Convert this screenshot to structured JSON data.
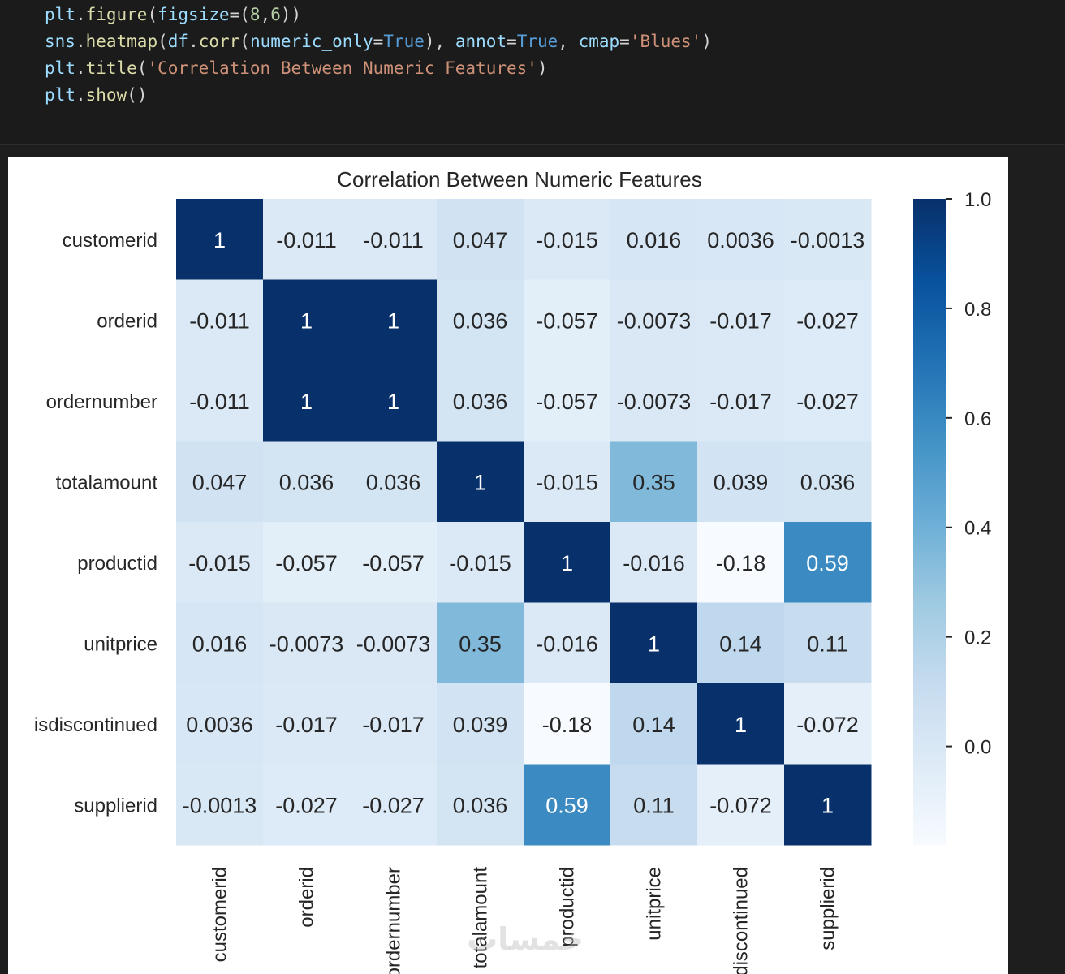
{
  "code_cell": {
    "lines": [
      [
        [
          "var",
          "plt"
        ],
        [
          "p",
          "."
        ],
        [
          "fn",
          "figure"
        ],
        [
          "p",
          "("
        ],
        [
          "var",
          "figsize"
        ],
        [
          "p",
          "=("
        ],
        [
          "num",
          "8"
        ],
        [
          "p",
          ","
        ],
        [
          "num",
          "6"
        ],
        [
          "p",
          "))"
        ]
      ],
      [
        [
          "var",
          "sns"
        ],
        [
          "p",
          "."
        ],
        [
          "fn",
          "heatmap"
        ],
        [
          "p",
          "("
        ],
        [
          "var",
          "df"
        ],
        [
          "p",
          "."
        ],
        [
          "fn",
          "corr"
        ],
        [
          "p",
          "("
        ],
        [
          "var",
          "numeric_only"
        ],
        [
          "p",
          "="
        ],
        [
          "kw",
          "True"
        ],
        [
          "p",
          "), "
        ],
        [
          "var",
          "annot"
        ],
        [
          "p",
          "="
        ],
        [
          "kw",
          "True"
        ],
        [
          "p",
          ", "
        ],
        [
          "var",
          "cmap"
        ],
        [
          "p",
          "="
        ],
        [
          "str",
          "'Blues'"
        ],
        [
          "p",
          ")"
        ]
      ],
      [
        [
          "var",
          "plt"
        ],
        [
          "p",
          "."
        ],
        [
          "fn",
          "title"
        ],
        [
          "p",
          "("
        ],
        [
          "str",
          "'Correlation Between Numeric Features'"
        ],
        [
          "p",
          ")"
        ]
      ],
      [
        [
          "var",
          "plt"
        ],
        [
          "p",
          "."
        ],
        [
          "fn",
          "show"
        ],
        [
          "p",
          "()"
        ]
      ]
    ]
  },
  "chart_data": {
    "type": "heatmap",
    "title": "Correlation Between Numeric Features",
    "row_labels": [
      "customerid",
      "orderid",
      "ordernumber",
      "totalamount",
      "productid",
      "unitprice",
      "isdiscontinued",
      "supplierid"
    ],
    "col_labels": [
      "customerid",
      "orderid",
      "ordernumber",
      "totalamount",
      "productid",
      "unitprice",
      "isdiscontinued",
      "supplierid"
    ],
    "values": [
      [
        1,
        -0.011,
        -0.011,
        0.047,
        -0.015,
        0.016,
        0.0036,
        -0.0013
      ],
      [
        -0.011,
        1,
        1,
        0.036,
        -0.057,
        -0.0073,
        -0.017,
        -0.027
      ],
      [
        -0.011,
        1,
        1,
        0.036,
        -0.057,
        -0.0073,
        -0.017,
        -0.027
      ],
      [
        0.047,
        0.036,
        0.036,
        1,
        -0.015,
        0.35,
        0.039,
        0.036
      ],
      [
        -0.015,
        -0.057,
        -0.057,
        -0.015,
        1,
        -0.016,
        -0.18,
        0.59
      ],
      [
        0.016,
        -0.0073,
        -0.0073,
        0.35,
        -0.016,
        1,
        0.14,
        0.11
      ],
      [
        0.0036,
        -0.017,
        -0.017,
        0.039,
        -0.18,
        0.14,
        1,
        -0.072
      ],
      [
        -0.0013,
        -0.027,
        -0.027,
        0.036,
        0.59,
        0.11,
        -0.072,
        1
      ]
    ],
    "annotations": [
      [
        "1",
        "-0.011",
        "-0.011",
        "0.047",
        "-0.015",
        "0.016",
        "0.0036",
        "-0.0013"
      ],
      [
        "-0.011",
        "1",
        "1",
        "0.036",
        "-0.057",
        "-0.0073",
        "-0.017",
        "-0.027"
      ],
      [
        "-0.011",
        "1",
        "1",
        "0.036",
        "-0.057",
        "-0.0073",
        "-0.017",
        "-0.027"
      ],
      [
        "0.047",
        "0.036",
        "0.036",
        "1",
        "-0.015",
        "0.35",
        "0.039",
        "0.036"
      ],
      [
        "-0.015",
        "-0.057",
        "-0.057",
        "-0.015",
        "1",
        "-0.016",
        "-0.18",
        "0.59"
      ],
      [
        "0.016",
        "-0.0073",
        "-0.0073",
        "0.35",
        "-0.016",
        "1",
        "0.14",
        "0.11"
      ],
      [
        "0.0036",
        "-0.017",
        "-0.017",
        "0.039",
        "-0.18",
        "0.14",
        "1",
        "-0.072"
      ],
      [
        "-0.0013",
        "-0.027",
        "-0.027",
        "0.036",
        "0.59",
        "0.11",
        "-0.072",
        "1"
      ]
    ],
    "cmap": "Blues",
    "vmin": -0.18,
    "vmax": 1.0,
    "colorbar_ticks": [
      1.0,
      0.8,
      0.6,
      0.4,
      0.2,
      0.0
    ],
    "colorbar_tick_labels": [
      "1.0",
      "0.8",
      "0.6",
      "0.4",
      "0.2",
      "0.0"
    ],
    "colors": {
      "light": "#f7fbff",
      "dark": "#08306b",
      "text_dark": "#262626",
      "text_light": "#ffffff"
    }
  },
  "watermark": "خمسات"
}
